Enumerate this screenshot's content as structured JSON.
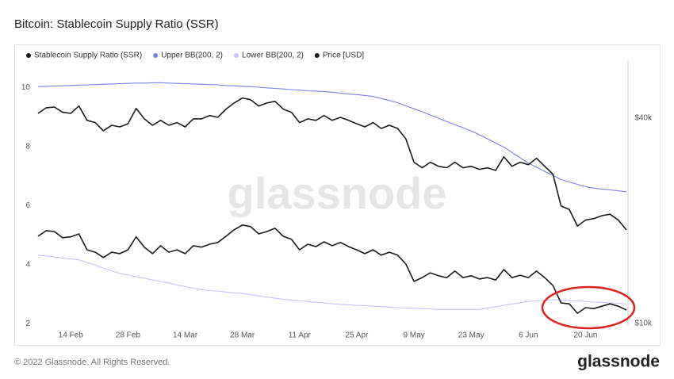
{
  "chart_data": {
    "type": "line",
    "title": "Bitcoin: Stablecoin Supply Ratio (SSR)",
    "watermark": "glassnode",
    "footer": "© 2022 Glassnode. All Rights Reserved.",
    "brand": "glassnode",
    "categories": [
      null,
      null,
      null,
      null,
      "14 Feb",
      null,
      null,
      null,
      null,
      null,
      null,
      "28 Feb",
      null,
      null,
      null,
      null,
      null,
      null,
      "14 Mar",
      null,
      null,
      null,
      null,
      null,
      null,
      "28 Mar",
      null,
      null,
      null,
      null,
      null,
      null,
      "11 Apr",
      null,
      null,
      null,
      null,
      null,
      null,
      "25 Apr",
      null,
      null,
      null,
      null,
      null,
      null,
      "9 May",
      null,
      null,
      null,
      null,
      null,
      null,
      "23 May",
      null,
      null,
      null,
      null,
      null,
      null,
      "6 Jun",
      null,
      null,
      null,
      null,
      null,
      null,
      "20 Jun",
      null,
      null,
      null,
      null,
      null
    ],
    "series": [
      {
        "name": "Stablecoin Supply Ratio (SSR)",
        "color": "#1a1a1a",
        "values": [
          4.96,
          5.15,
          5.12,
          4.91,
          4.94,
          5.04,
          4.5,
          4.42,
          4.24,
          4.42,
          4.37,
          4.5,
          4.94,
          4.59,
          4.37,
          4.64,
          4.42,
          4.5,
          4.37,
          4.64,
          4.59,
          4.69,
          4.75,
          4.96,
          5.18,
          5.34,
          5.29,
          5.04,
          5.12,
          5.23,
          4.96,
          4.86,
          4.5,
          4.69,
          4.61,
          4.77,
          4.64,
          4.75,
          4.61,
          4.5,
          4.37,
          4.5,
          4.32,
          4.42,
          4.32,
          4.02,
          3.43,
          3.56,
          3.72,
          3.62,
          3.56,
          3.78,
          3.56,
          3.62,
          3.51,
          3.56,
          3.48,
          3.83,
          3.56,
          3.64,
          3.56,
          3.78,
          3.56,
          3.29,
          2.7,
          2.67,
          2.35,
          2.54,
          2.51,
          2.59,
          2.67,
          2.59,
          2.46
        ]
      },
      {
        "name": "Upper BB(200, 2)",
        "color": "#7b7fe6",
        "values": [
          10.03,
          10.04,
          10.05,
          10.06,
          10.07,
          10.08,
          10.09,
          10.1,
          10.11,
          10.12,
          10.13,
          10.14,
          10.15,
          10.15,
          10.16,
          10.16,
          10.15,
          10.14,
          10.13,
          10.12,
          10.11,
          10.1,
          10.09,
          10.07,
          10.06,
          10.04,
          10.03,
          10.01,
          9.99,
          9.97,
          9.95,
          9.93,
          9.91,
          9.89,
          9.88,
          9.86,
          9.84,
          9.81,
          9.78,
          9.76,
          9.73,
          9.7,
          9.63,
          9.56,
          9.49,
          9.38,
          9.28,
          9.18,
          9.07,
          8.96,
          8.85,
          8.74,
          8.64,
          8.53,
          8.4,
          8.26,
          8.12,
          7.98,
          7.8,
          7.62,
          7.44,
          7.3,
          7.16,
          7.02,
          6.88,
          6.8,
          6.72,
          6.64,
          6.59,
          6.56,
          6.53,
          6.5,
          6.47
        ]
      },
      {
        "name": "Lower BB(200, 2)",
        "color": "#c3c3f7",
        "values": [
          4.32,
          4.29,
          4.26,
          4.22,
          4.19,
          4.16,
          4.07,
          3.98,
          3.88,
          3.79,
          3.7,
          3.65,
          3.59,
          3.54,
          3.48,
          3.43,
          3.37,
          3.31,
          3.26,
          3.2,
          3.15,
          3.12,
          3.1,
          3.07,
          3.04,
          3.02,
          2.98,
          2.94,
          2.9,
          2.86,
          2.82,
          2.8,
          2.77,
          2.75,
          2.72,
          2.7,
          2.67,
          2.65,
          2.64,
          2.62,
          2.61,
          2.59,
          2.58,
          2.56,
          2.54,
          2.53,
          2.52,
          2.51,
          2.5,
          2.48,
          2.48,
          2.48,
          2.48,
          2.48,
          2.48,
          2.53,
          2.57,
          2.62,
          2.66,
          2.71,
          2.75,
          2.77,
          2.79,
          2.81,
          2.8,
          2.78,
          2.77,
          2.75,
          2.73,
          2.72,
          2.7,
          2.69,
          2.67
        ]
      },
      {
        "name": "Price [USD]",
        "color": "#1a1a1a",
        "axis": "y2",
        "values": [
          41300,
          42900,
          43100,
          41600,
          41300,
          43400,
          39400,
          38800,
          36700,
          38100,
          37700,
          38500,
          42700,
          39800,
          38100,
          39400,
          38100,
          38800,
          37700,
          39800,
          39800,
          40700,
          40200,
          42500,
          44300,
          45800,
          45300,
          43400,
          44300,
          44800,
          42500,
          41600,
          38800,
          39800,
          39400,
          40700,
          39400,
          40200,
          39400,
          38500,
          37700,
          38800,
          37300,
          38100,
          37300,
          34800,
          29700,
          28600,
          29700,
          28900,
          28600,
          29700,
          28600,
          28900,
          28300,
          28600,
          28100,
          30800,
          28900,
          29700,
          29200,
          30500,
          28900,
          27400,
          22100,
          21600,
          19300,
          20100,
          20300,
          20700,
          20900,
          20100,
          18800
        ]
      }
    ],
    "ylim": [
      1.95,
      11.3
    ],
    "yticks": [
      2,
      4,
      6,
      8,
      10
    ],
    "y2lim": [
      9890,
      63700
    ],
    "y2scale": "log",
    "y2ticks": [
      {
        "value": 10000,
        "label": "$10k"
      },
      {
        "value": 40000,
        "label": "$40k"
      }
    ]
  }
}
